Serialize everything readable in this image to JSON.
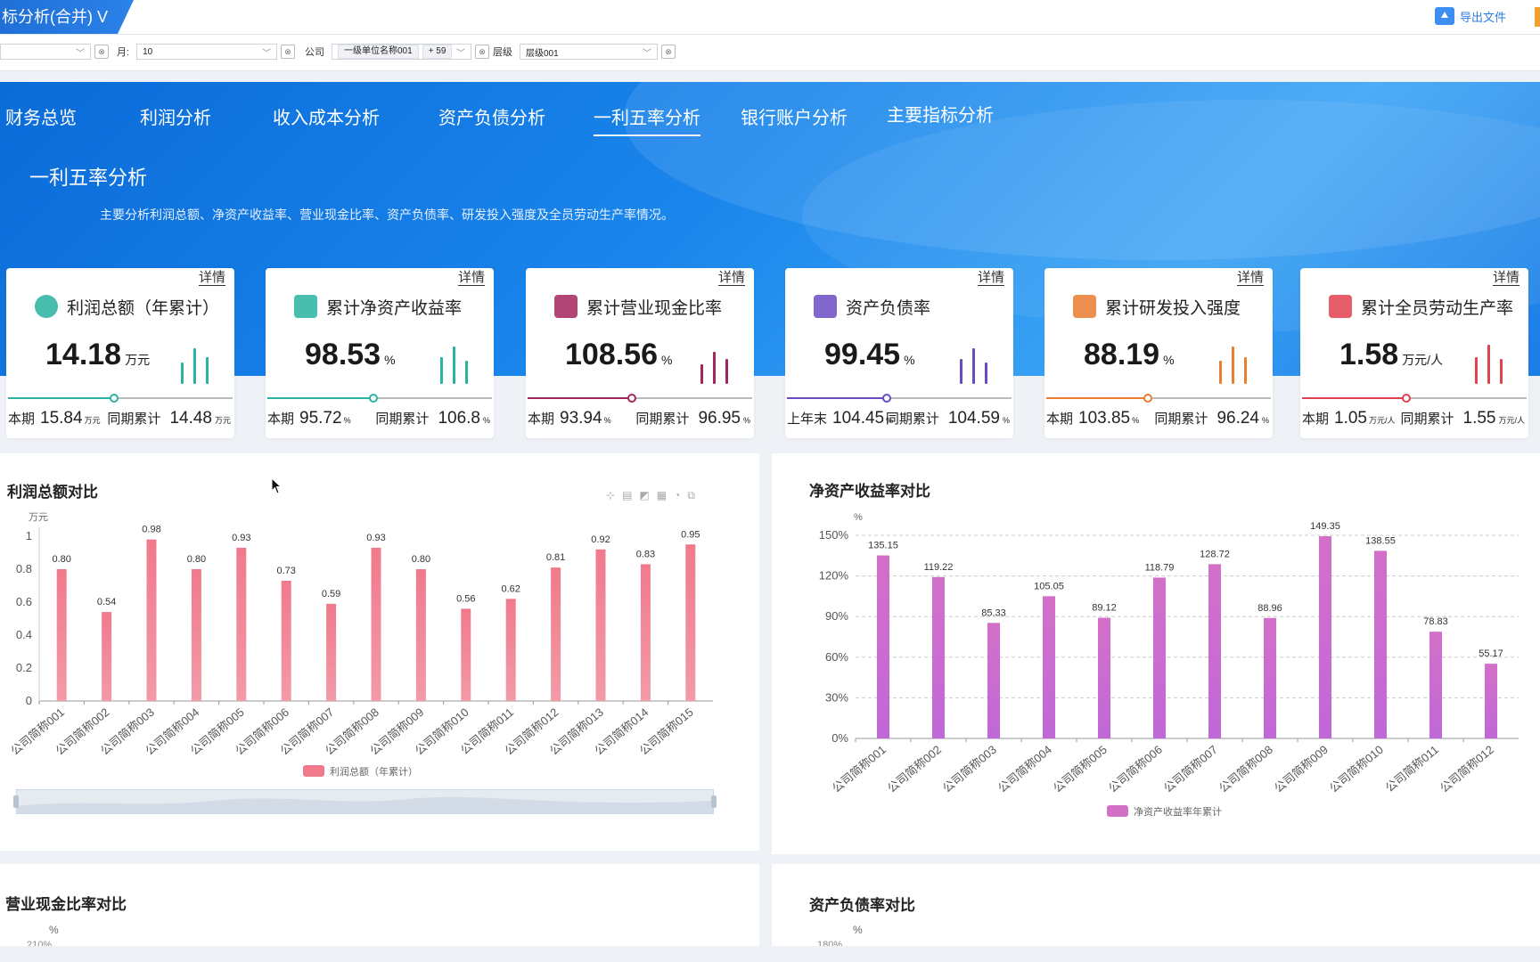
{
  "window": {
    "title": "标分析(合并) V",
    "export_label": "导出文件"
  },
  "filters": {
    "year_value": "",
    "month_label": "月:",
    "month_value": "10",
    "company_label": "公司",
    "company_chip": "一级单位名称001",
    "company_more": "+ 59",
    "level_label": "层级",
    "level_value": "层级001"
  },
  "nav": {
    "tabs": [
      "财务总览",
      "利润分析",
      "收入成本分析",
      "资产负债分析",
      "一利五率分析",
      "银行账户分析",
      "主要指标分析"
    ],
    "active_index": 4
  },
  "section": {
    "title": "一利五率分析",
    "description": "主要分析利润总额、净资产收益率、营业现金比率、资产负债率、研发投入强度及全员劳动生产率情况。"
  },
  "kpis": [
    {
      "detail": "详情",
      "title": "利润总额（年累计）",
      "value": "14.18",
      "unit": "万元",
      "left_label": "本期",
      "left_value": "15.84",
      "left_unit": "万元",
      "right_label": "同期累计",
      "right_value": "14.48",
      "right_unit": "万元",
      "color": "#28b4a0",
      "icon": "coins-icon",
      "progress": 0.47
    },
    {
      "detail": "详情",
      "title": "累计净资产收益率",
      "value": "98.53",
      "unit": "%",
      "left_label": "本期",
      "left_value": "95.72",
      "left_unit": "%",
      "right_label": "同期累计",
      "right_value": "106.8",
      "right_unit": "%",
      "color": "#28b4a0",
      "icon": "cube-icon",
      "progress": 0.47
    },
    {
      "detail": "详情",
      "title": "累计营业现金比率",
      "value": "108.56",
      "unit": "%",
      "left_label": "本期",
      "left_value": "93.94",
      "left_unit": "%",
      "right_label": "同期累计",
      "right_value": "96.95",
      "right_unit": "%",
      "color": "#a3255b",
      "icon": "cart-icon",
      "progress": 0.46
    },
    {
      "detail": "详情",
      "title": "资产负债率",
      "value": "99.45",
      "unit": "%",
      "left_label": "上年末",
      "left_value": "104.45",
      "left_unit": "%",
      "right_label": "同期累计",
      "right_value": "104.59",
      "right_unit": "%",
      "color": "#6a4bc4",
      "icon": "house-icon",
      "progress": 0.44
    },
    {
      "detail": "详情",
      "title": "累计研发投入强度",
      "value": "88.19",
      "unit": "%",
      "left_label": "本期",
      "left_value": "103.85",
      "left_unit": "%",
      "right_label": "同期累计",
      "right_value": "96.24",
      "right_unit": "%",
      "color": "#ea7d30",
      "icon": "handtruck-icon",
      "progress": 0.45
    },
    {
      "detail": "详情",
      "title": "累计全员劳动生产率",
      "value": "1.58",
      "unit": "万元/人",
      "left_label": "本期",
      "left_value": "1.05",
      "left_unit": "万元/人",
      "right_label": "同期累计",
      "right_value": "1.55",
      "right_unit": "万元/人",
      "color": "#e04050",
      "icon": "moneybag-icon",
      "progress": 0.46
    }
  ],
  "panels": {
    "profit_title": "利润总额对比",
    "roe_title": "净资产收益率对比",
    "cash_title": "营业现金比率对比",
    "cash_unit": "%",
    "cash_first_tick": "210%",
    "debt_title": "资产负债率对比",
    "debt_unit": "%",
    "debt_first_tick": "180%"
  },
  "chart_data": [
    {
      "type": "bar",
      "title": "利润总额对比",
      "ylabel": "万元",
      "ylim": [
        0,
        1
      ],
      "yticks": [
        "0",
        "0.2",
        "0.4",
        "0.6",
        "0.8",
        "1"
      ],
      "categories": [
        "公司简称001",
        "公司简称002",
        "公司简称003",
        "公司简称004",
        "公司简称005",
        "公司简称006",
        "公司简称007",
        "公司简称008",
        "公司简称009",
        "公司简称010",
        "公司简称011",
        "公司简称012",
        "公司简称013",
        "公司简称014",
        "公司简称015"
      ],
      "series": [
        {
          "name": "利润总额（年累计）",
          "values": [
            0.8,
            0.54,
            0.98,
            0.8,
            0.93,
            0.73,
            0.59,
            0.93,
            0.8,
            0.56,
            0.62,
            0.81,
            0.92,
            0.83,
            0.95
          ]
        }
      ],
      "labels": [
        "0.80",
        "0.54",
        "0.98",
        "0.80",
        "0.93",
        "0.73",
        "0.59",
        "0.93",
        "0.80",
        "0.56",
        "0.62",
        "0.81",
        "0.92",
        "0.83",
        "0.95"
      ],
      "colors": [
        "#f07a8c",
        "#f29aa8"
      ],
      "legend": "bottom",
      "grid": false
    },
    {
      "type": "bar",
      "title": "净资产收益率对比",
      "ylabel": "%",
      "ylim": [
        0,
        150
      ],
      "yticks": [
        "0%",
        "30%",
        "60%",
        "90%",
        "120%",
        "150%"
      ],
      "categories": [
        "公司简称001",
        "公司简称002",
        "公司简称003",
        "公司简称004",
        "公司简称005",
        "公司简称006",
        "公司简称007",
        "公司简称008",
        "公司简称009",
        "公司简称010",
        "公司简称011",
        "公司简称012"
      ],
      "series": [
        {
          "name": "净资产收益率年累计",
          "values": [
            135.15,
            119.22,
            85.33,
            105.05,
            89.12,
            118.79,
            128.72,
            88.96,
            149.35,
            138.55,
            78.83,
            55.17
          ]
        }
      ],
      "labels": [
        "135.15",
        "119.22",
        "85.33",
        "105.05",
        "89.12",
        "118.79",
        "128.72",
        "88.96",
        "149.35",
        "138.55",
        "78.83",
        "55.17"
      ],
      "colors": [
        "#d46fc8",
        "#c068d8"
      ],
      "legend": "bottom",
      "grid": true
    }
  ]
}
